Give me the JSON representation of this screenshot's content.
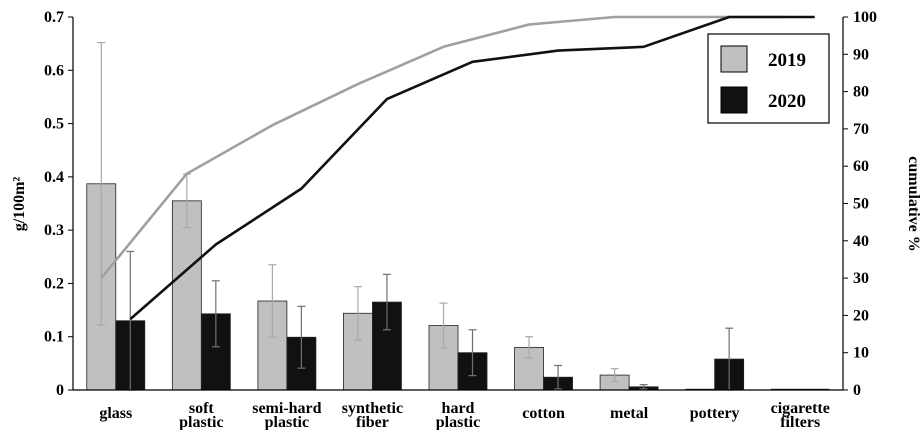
{
  "chart_data": {
    "type": "bar",
    "categories": [
      [
        "glass"
      ],
      [
        "soft",
        "plastic"
      ],
      [
        "semi-hard",
        "plastic"
      ],
      [
        "synthetic",
        "fiber"
      ],
      [
        "hard",
        "plastic"
      ],
      [
        "cotton"
      ],
      [
        "metal"
      ],
      [
        "pottery"
      ],
      [
        "cigarette",
        "filters"
      ]
    ],
    "series": [
      {
        "name": "2019",
        "color": "#c0c0c0",
        "values": [
          0.387,
          0.355,
          0.167,
          0.144,
          0.121,
          0.08,
          0.028,
          0.0,
          0.0
        ],
        "error": [
          0.265,
          0.05,
          0.068,
          0.05,
          0.042,
          0.02,
          0.012,
          0.0,
          0.0
        ],
        "cumulative": [
          30,
          58,
          71,
          82,
          92,
          98,
          100,
          100,
          100
        ]
      },
      {
        "name": "2020",
        "color": "#111111",
        "values": [
          0.13,
          0.143,
          0.099,
          0.165,
          0.07,
          0.024,
          0.006,
          0.058,
          0.001
        ],
        "error": [
          0.13,
          0.062,
          0.058,
          0.052,
          0.043,
          0.022,
          0.004,
          0.058,
          0.0
        ],
        "cumulative": [
          19,
          39,
          54,
          78,
          88,
          91,
          92,
          100,
          100
        ]
      }
    ],
    "ylabel": "g/100m²",
    "y2label": "cumulative %",
    "ylim": [
      0,
      0.7
    ],
    "yticks": [
      "0",
      "0.1",
      "0.2",
      "0.3",
      "0.4",
      "0.5",
      "0.6",
      "0.7"
    ],
    "y2lim": [
      0,
      100
    ],
    "y2ticks": [
      "0",
      "10",
      "20",
      "30",
      "40",
      "50",
      "60",
      "70",
      "80",
      "90",
      "100"
    ],
    "legend_position": "top-right",
    "grid": false
  }
}
